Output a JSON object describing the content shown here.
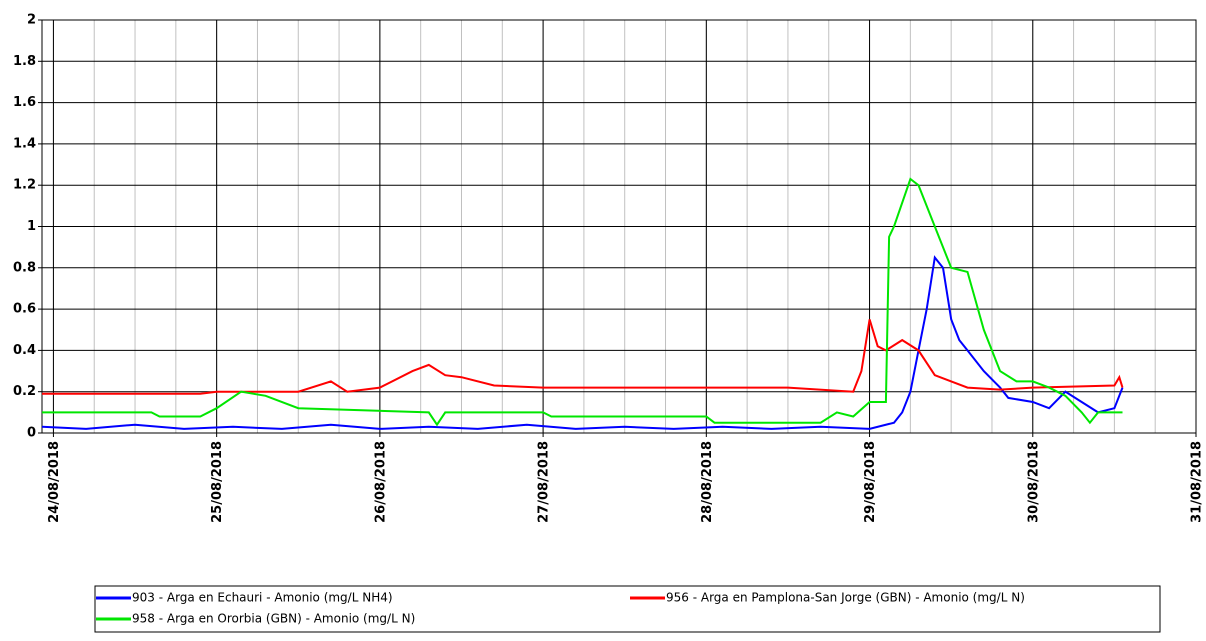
{
  "chart_data": {
    "type": "line",
    "xlim": [
      -0.07,
      7
    ],
    "xticks": [
      {
        "value": 0,
        "label": "24/08/2018"
      },
      {
        "value": 1,
        "label": "25/08/2018"
      },
      {
        "value": 2,
        "label": "26/08/2018"
      },
      {
        "value": 3,
        "label": "27/08/2018"
      },
      {
        "value": 4,
        "label": "28/08/2018"
      },
      {
        "value": 5,
        "label": "29/08/2018"
      },
      {
        "value": 6,
        "label": "30/08/2018"
      },
      {
        "value": 7,
        "label": "31/08/2018"
      }
    ],
    "xminor": 0.25,
    "ylim": [
      0,
      2
    ],
    "yticks": [
      0,
      0.2,
      0.4,
      0.6,
      0.8,
      1,
      1.2,
      1.4,
      1.6,
      1.8,
      2
    ],
    "grid": true,
    "series": [
      {
        "name": "903 - Arga en Echauri - Amonio (mg/L NH4)",
        "color": "#0000ff",
        "x": [
          -0.07,
          0.2,
          0.5,
          0.8,
          1.1,
          1.4,
          1.7,
          2.0,
          2.3,
          2.6,
          2.9,
          3.2,
          3.5,
          3.8,
          4.1,
          4.4,
          4.7,
          5.0,
          5.15,
          5.2,
          5.25,
          5.3,
          5.35,
          5.4,
          5.45,
          5.5,
          5.55,
          5.6,
          5.7,
          5.8,
          5.85,
          6.0,
          6.1,
          6.2,
          6.3,
          6.4,
          6.5,
          6.55
        ],
        "values": [
          0.03,
          0.02,
          0.04,
          0.02,
          0.03,
          0.02,
          0.04,
          0.02,
          0.03,
          0.02,
          0.04,
          0.02,
          0.03,
          0.02,
          0.03,
          0.02,
          0.03,
          0.02,
          0.05,
          0.1,
          0.2,
          0.4,
          0.6,
          0.85,
          0.8,
          0.55,
          0.45,
          0.4,
          0.3,
          0.22,
          0.17,
          0.15,
          0.12,
          0.2,
          0.15,
          0.1,
          0.12,
          0.22
        ]
      },
      {
        "name": "956 - Arga en Pamplona-San Jorge (GBN) - Amonio (mg/L N)",
        "color": "#ff0000",
        "x": [
          -0.07,
          0.5,
          0.9,
          1.0,
          1.5,
          1.7,
          1.8,
          2.0,
          2.2,
          2.3,
          2.4,
          2.5,
          2.7,
          3.0,
          3.5,
          4.0,
          4.5,
          4.9,
          4.95,
          5.0,
          5.05,
          5.1,
          5.2,
          5.3,
          5.4,
          5.6,
          5.8,
          6.0,
          6.5,
          6.53,
          6.55
        ],
        "values": [
          0.19,
          0.19,
          0.19,
          0.2,
          0.2,
          0.25,
          0.2,
          0.22,
          0.3,
          0.33,
          0.28,
          0.27,
          0.23,
          0.22,
          0.22,
          0.22,
          0.22,
          0.2,
          0.3,
          0.55,
          0.42,
          0.4,
          0.45,
          0.4,
          0.28,
          0.22,
          0.21,
          0.22,
          0.23,
          0.27,
          0.22
        ]
      },
      {
        "name": "958 - Arga en Ororbia (GBN) - Amonio (mg/L N)",
        "color": "#00e600",
        "x": [
          -0.07,
          0.6,
          0.65,
          0.9,
          1.0,
          1.15,
          1.3,
          1.5,
          2.3,
          2.35,
          2.4,
          3.0,
          3.05,
          4.0,
          4.05,
          4.7,
          4.8,
          4.9,
          5.0,
          5.1,
          5.12,
          5.15,
          5.25,
          5.3,
          5.4,
          5.5,
          5.6,
          5.7,
          5.8,
          5.9,
          6.0,
          6.1,
          6.2,
          6.3,
          6.35,
          6.4,
          6.55
        ],
        "values": [
          0.1,
          0.1,
          0.08,
          0.08,
          0.12,
          0.2,
          0.18,
          0.12,
          0.1,
          0.04,
          0.1,
          0.1,
          0.08,
          0.08,
          0.05,
          0.05,
          0.1,
          0.08,
          0.15,
          0.15,
          0.95,
          1.0,
          1.23,
          1.2,
          1.0,
          0.8,
          0.78,
          0.5,
          0.3,
          0.25,
          0.25,
          0.22,
          0.18,
          0.1,
          0.05,
          0.1,
          0.1
        ]
      }
    ]
  }
}
